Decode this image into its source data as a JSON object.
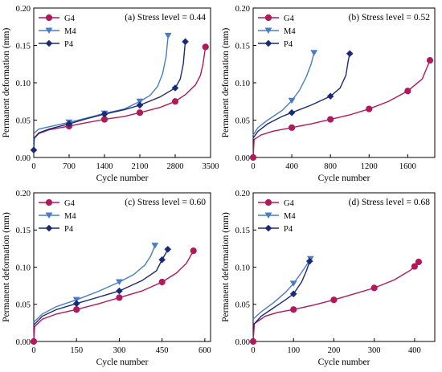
{
  "chart_data": [
    {
      "type": "line",
      "title": "(a) Stress level = 0.44",
      "xlabel": "Cycle number",
      "ylabel": "Permanent deformation (mm)",
      "xlim": [
        0,
        3500
      ],
      "ylim": [
        0,
        0.2
      ],
      "xticks": [
        0,
        700,
        1400,
        2100,
        2800,
        3500
      ],
      "yticks": [
        0.0,
        0.05,
        0.1,
        0.15,
        0.2
      ],
      "xtick_labels": [
        "0",
        "700",
        "1400",
        "2100",
        "2800",
        "3500"
      ],
      "ytick_labels": [
        "0.00",
        "0.05",
        "0.10",
        "0.15",
        "0.20"
      ],
      "legend": "top-left",
      "series": [
        {
          "name": "G4",
          "color": "#b2195a",
          "marker": "circle",
          "points": [
            [
              0,
              0.025
            ],
            [
              100,
              0.032
            ],
            [
              300,
              0.037
            ],
            [
              700,
              0.042
            ],
            [
              1000,
              0.046
            ],
            [
              1400,
              0.051
            ],
            [
              1800,
              0.055
            ],
            [
              2100,
              0.06
            ],
            [
              2500,
              0.067
            ],
            [
              2800,
              0.075
            ],
            [
              3000,
              0.084
            ],
            [
              3200,
              0.097
            ],
            [
              3300,
              0.11
            ],
            [
              3350,
              0.125
            ],
            [
              3400,
              0.148
            ]
          ],
          "marker_points": [
            [
              700,
              0.042
            ],
            [
              1400,
              0.051
            ],
            [
              2100,
              0.06
            ],
            [
              2800,
              0.075
            ],
            [
              3400,
              0.148
            ]
          ]
        },
        {
          "name": "M4",
          "color": "#4a7bc8",
          "marker": "triangle-down",
          "points": [
            [
              0,
              0.032
            ],
            [
              100,
              0.038
            ],
            [
              300,
              0.041
            ],
            [
              700,
              0.047
            ],
            [
              1000,
              0.052
            ],
            [
              1400,
              0.059
            ],
            [
              1800,
              0.065
            ],
            [
              2100,
              0.075
            ],
            [
              2300,
              0.083
            ],
            [
              2450,
              0.095
            ],
            [
              2550,
              0.112
            ],
            [
              2620,
              0.135
            ],
            [
              2660,
              0.163
            ]
          ],
          "marker_points": [
            [
              700,
              0.047
            ],
            [
              1400,
              0.059
            ],
            [
              2100,
              0.075
            ],
            [
              2660,
              0.163
            ]
          ]
        },
        {
          "name": "P4",
          "color": "#1a2a7a",
          "marker": "diamond",
          "points": [
            [
              0,
              0.01
            ],
            [
              10,
              0.026
            ],
            [
              100,
              0.033
            ],
            [
              300,
              0.038
            ],
            [
              700,
              0.045
            ],
            [
              1000,
              0.051
            ],
            [
              1400,
              0.058
            ],
            [
              1800,
              0.064
            ],
            [
              2100,
              0.07
            ],
            [
              2500,
              0.081
            ],
            [
              2800,
              0.093
            ],
            [
              2900,
              0.105
            ],
            [
              2960,
              0.125
            ],
            [
              3000,
              0.155
            ]
          ],
          "marker_points": [
            [
              0,
              0.01
            ],
            [
              700,
              0.045
            ],
            [
              1400,
              0.058
            ],
            [
              2100,
              0.07
            ],
            [
              2800,
              0.093
            ],
            [
              3000,
              0.155
            ]
          ]
        }
      ]
    },
    {
      "type": "line",
      "title": "(b) Stress level = 0.52",
      "xlabel": "Cycle number",
      "ylabel": "Permanent deformation (mm)",
      "xlim": [
        0,
        1880
      ],
      "ylim": [
        0,
        0.2
      ],
      "xticks": [
        0,
        400,
        800,
        1200,
        1600
      ],
      "yticks": [
        0.0,
        0.05,
        0.1,
        0.15,
        0.2
      ],
      "xtick_labels": [
        "0",
        "400",
        "800",
        "1200",
        "1600"
      ],
      "ytick_labels": [
        "0.00",
        "0.05",
        "0.10",
        "0.15",
        "0.20"
      ],
      "legend": "top-left",
      "series": [
        {
          "name": "G4",
          "color": "#b2195a",
          "marker": "circle",
          "points": [
            [
              0,
              0.0
            ],
            [
              10,
              0.024
            ],
            [
              80,
              0.03
            ],
            [
              200,
              0.035
            ],
            [
              400,
              0.04
            ],
            [
              600,
              0.045
            ],
            [
              800,
              0.051
            ],
            [
              1000,
              0.057
            ],
            [
              1200,
              0.065
            ],
            [
              1400,
              0.075
            ],
            [
              1600,
              0.089
            ],
            [
              1750,
              0.105
            ],
            [
              1830,
              0.13
            ]
          ],
          "marker_points": [
            [
              0,
              0.0
            ],
            [
              400,
              0.04
            ],
            [
              800,
              0.051
            ],
            [
              1200,
              0.065
            ],
            [
              1600,
              0.089
            ],
            [
              1830,
              0.13
            ]
          ]
        },
        {
          "name": "M4",
          "color": "#4a7bc8",
          "marker": "triangle-down",
          "points": [
            [
              0,
              0.03
            ],
            [
              50,
              0.04
            ],
            [
              150,
              0.05
            ],
            [
              300,
              0.063
            ],
            [
              400,
              0.076
            ],
            [
              480,
              0.09
            ],
            [
              550,
              0.108
            ],
            [
              600,
              0.125
            ],
            [
              630,
              0.14
            ]
          ],
          "marker_points": [
            [
              400,
              0.076
            ],
            [
              630,
              0.14
            ]
          ]
        },
        {
          "name": "P4",
          "color": "#1a2a7a",
          "marker": "diamond",
          "points": [
            [
              0,
              0.026
            ],
            [
              50,
              0.035
            ],
            [
              150,
              0.045
            ],
            [
              300,
              0.055
            ],
            [
              400,
              0.06
            ],
            [
              600,
              0.07
            ],
            [
              800,
              0.082
            ],
            [
              900,
              0.093
            ],
            [
              960,
              0.11
            ],
            [
              985,
              0.13
            ],
            [
              1000,
              0.139
            ]
          ],
          "marker_points": [
            [
              400,
              0.06
            ],
            [
              800,
              0.082
            ],
            [
              1000,
              0.139
            ]
          ]
        }
      ]
    },
    {
      "type": "line",
      "title": "(c) Stress level = 0.60",
      "xlabel": "Cycle number",
      "ylabel": "Permanent deformation (mm)",
      "xlim": [
        0,
        620
      ],
      "ylim": [
        0,
        0.2
      ],
      "xticks": [
        0,
        150,
        300,
        450,
        600
      ],
      "yticks": [
        0.0,
        0.05,
        0.1,
        0.15,
        0.2
      ],
      "xtick_labels": [
        "0",
        "150",
        "300",
        "450",
        "600"
      ],
      "ytick_labels": [
        "0.00",
        "0.05",
        "0.10",
        "0.15",
        "0.20"
      ],
      "legend": "top-left",
      "series": [
        {
          "name": "G4",
          "color": "#b2195a",
          "marker": "circle",
          "points": [
            [
              0,
              0.0
            ],
            [
              3,
              0.02
            ],
            [
              30,
              0.03
            ],
            [
              80,
              0.037
            ],
            [
              150,
              0.043
            ],
            [
              230,
              0.051
            ],
            [
              300,
              0.059
            ],
            [
              380,
              0.068
            ],
            [
              450,
              0.08
            ],
            [
              500,
              0.092
            ],
            [
              535,
              0.105
            ],
            [
              560,
              0.122
            ]
          ],
          "marker_points": [
            [
              0,
              0.0
            ],
            [
              150,
              0.043
            ],
            [
              300,
              0.059
            ],
            [
              450,
              0.08
            ],
            [
              560,
              0.122
            ]
          ]
        },
        {
          "name": "M4",
          "color": "#4a7bc8",
          "marker": "triangle-down",
          "points": [
            [
              0,
              0.026
            ],
            [
              30,
              0.037
            ],
            [
              80,
              0.047
            ],
            [
              150,
              0.056
            ],
            [
              230,
              0.068
            ],
            [
              300,
              0.08
            ],
            [
              350,
              0.09
            ],
            [
              390,
              0.103
            ],
            [
              410,
              0.115
            ],
            [
              425,
              0.129
            ]
          ],
          "marker_points": [
            [
              150,
              0.056
            ],
            [
              300,
              0.08
            ],
            [
              425,
              0.129
            ]
          ]
        },
        {
          "name": "P4",
          "color": "#1a2a7a",
          "marker": "diamond",
          "points": [
            [
              0,
              0.022
            ],
            [
              30,
              0.034
            ],
            [
              80,
              0.043
            ],
            [
              150,
              0.051
            ],
            [
              230,
              0.06
            ],
            [
              300,
              0.068
            ],
            [
              380,
              0.082
            ],
            [
              430,
              0.095
            ],
            [
              450,
              0.11
            ],
            [
              465,
              0.12
            ],
            [
              470,
              0.124
            ]
          ],
          "marker_points": [
            [
              150,
              0.051
            ],
            [
              300,
              0.068
            ],
            [
              450,
              0.11
            ],
            [
              470,
              0.124
            ]
          ]
        }
      ]
    },
    {
      "type": "line",
      "title": "(d) Stress level = 0.68",
      "xlabel": "Cycle number",
      "ylabel": "Permanent deformation (mm)",
      "xlim": [
        0,
        450
      ],
      "ylim": [
        0,
        0.2
      ],
      "xticks": [
        0,
        100,
        200,
        300,
        400
      ],
      "yticks": [
        0.0,
        0.05,
        0.1,
        0.15,
        0.2
      ],
      "xtick_labels": [
        "0",
        "100",
        "200",
        "300",
        "400"
      ],
      "ytick_labels": [
        "0.00",
        "0.05",
        "0.10",
        "0.15",
        "0.20"
      ],
      "legend": "top-left",
      "series": [
        {
          "name": "G4",
          "color": "#b2195a",
          "marker": "circle",
          "points": [
            [
              0,
              0.0
            ],
            [
              3,
              0.024
            ],
            [
              30,
              0.034
            ],
            [
              60,
              0.039
            ],
            [
              100,
              0.043
            ],
            [
              150,
              0.049
            ],
            [
              200,
              0.056
            ],
            [
              250,
              0.064
            ],
            [
              300,
              0.072
            ],
            [
              350,
              0.083
            ],
            [
              390,
              0.096
            ],
            [
              400,
              0.101
            ],
            [
              410,
              0.107
            ]
          ],
          "marker_points": [
            [
              0,
              0.0
            ],
            [
              100,
              0.043
            ],
            [
              200,
              0.056
            ],
            [
              300,
              0.072
            ],
            [
              400,
              0.101
            ],
            [
              410,
              0.107
            ]
          ]
        },
        {
          "name": "M4",
          "color": "#4a7bc8",
          "marker": "triangle-down",
          "points": [
            [
              0,
              0.03
            ],
            [
              20,
              0.04
            ],
            [
              50,
              0.052
            ],
            [
              80,
              0.066
            ],
            [
              100,
              0.078
            ],
            [
              120,
              0.093
            ],
            [
              135,
              0.105
            ],
            [
              142,
              0.111
            ]
          ],
          "marker_points": [
            [
              100,
              0.078
            ],
            [
              142,
              0.111
            ]
          ]
        },
        {
          "name": "P4",
          "color": "#1a2a7a",
          "marker": "diamond",
          "points": [
            [
              0,
              0.022
            ],
            [
              20,
              0.034
            ],
            [
              50,
              0.045
            ],
            [
              80,
              0.056
            ],
            [
              100,
              0.064
            ],
            [
              120,
              0.08
            ],
            [
              132,
              0.095
            ],
            [
              140,
              0.108
            ]
          ],
          "marker_points": [
            [
              100,
              0.064
            ],
            [
              140,
              0.108
            ]
          ]
        }
      ]
    }
  ]
}
